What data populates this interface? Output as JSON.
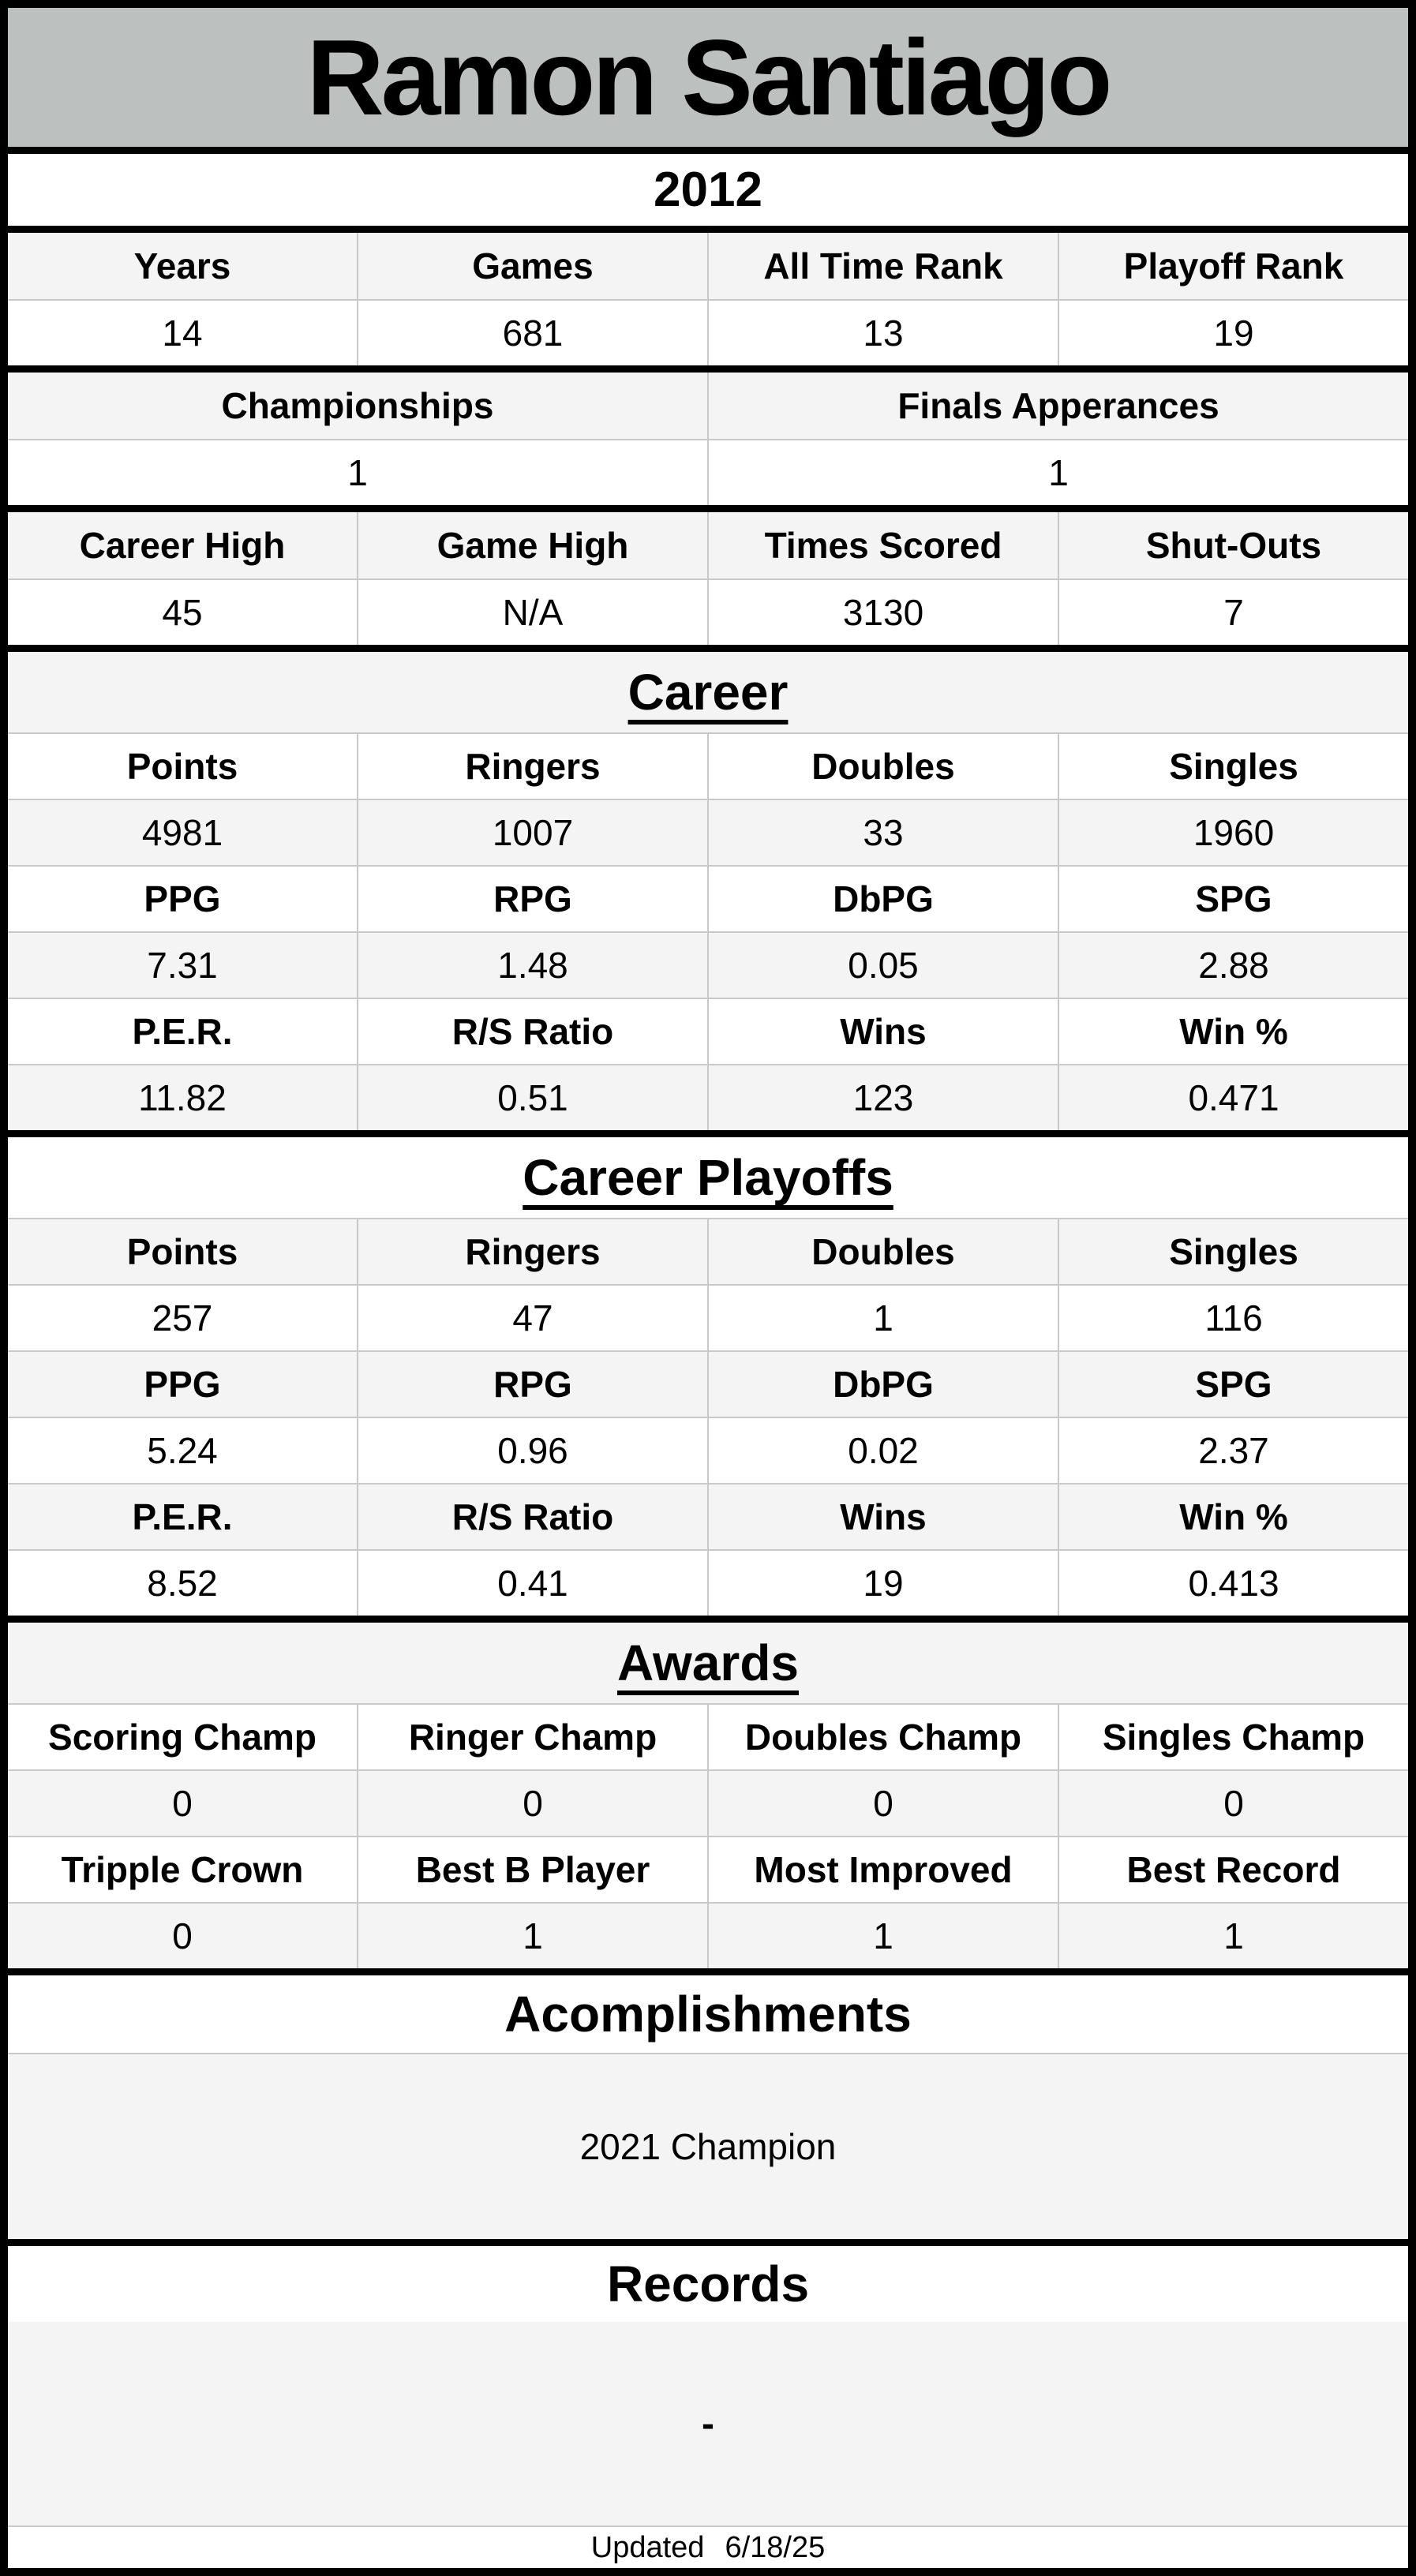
{
  "title": "Ramon Santiago",
  "season": "2012",
  "overview": {
    "headers": [
      "Years",
      "Games",
      "All Time Rank",
      "Playoff Rank"
    ],
    "values": [
      "14",
      "681",
      "13",
      "19"
    ]
  },
  "finals": {
    "headers": [
      "Championships",
      "Finals Apperances"
    ],
    "values": [
      "1",
      "1"
    ]
  },
  "highs": {
    "headers": [
      "Career High",
      "Game High",
      "Times Scored",
      "Shut-Outs"
    ],
    "values": [
      "45",
      "N/A",
      "3130",
      "7"
    ]
  },
  "career": {
    "title": "Career",
    "rows": [
      {
        "headers": [
          "Points",
          "Ringers",
          "Doubles",
          "Singles"
        ],
        "values": [
          "4981",
          "1007",
          "33",
          "1960"
        ]
      },
      {
        "headers": [
          "PPG",
          "RPG",
          "DbPG",
          "SPG"
        ],
        "values": [
          "7.31",
          "1.48",
          "0.05",
          "2.88"
        ]
      },
      {
        "headers": [
          "P.E.R.",
          "R/S Ratio",
          "Wins",
          "Win %"
        ],
        "values": [
          "11.82",
          "0.51",
          "123",
          "0.471"
        ]
      }
    ]
  },
  "career_playoffs": {
    "title": "Career Playoffs",
    "rows": [
      {
        "headers": [
          "Points",
          "Ringers",
          "Doubles",
          "Singles"
        ],
        "values": [
          "257",
          "47",
          "1",
          "116"
        ]
      },
      {
        "headers": [
          "PPG",
          "RPG",
          "DbPG",
          "SPG"
        ],
        "values": [
          "5.24",
          "0.96",
          "0.02",
          "2.37"
        ]
      },
      {
        "headers": [
          "P.E.R.",
          "R/S Ratio",
          "Wins",
          "Win %"
        ],
        "values": [
          "8.52",
          "0.41",
          "19",
          "0.413"
        ]
      }
    ]
  },
  "awards": {
    "title": "Awards",
    "rows": [
      {
        "headers": [
          "Scoring Champ",
          "Ringer Champ",
          "Doubles Champ",
          "Singles Champ"
        ],
        "values": [
          "0",
          "0",
          "0",
          "0"
        ]
      },
      {
        "headers": [
          "Tripple Crown",
          "Best B Player",
          "Most Improved",
          "Best Record"
        ],
        "values": [
          "0",
          "1",
          "1",
          "1"
        ]
      }
    ]
  },
  "acomplishments": {
    "title": "Acomplishments",
    "content": "2021 Champion"
  },
  "records": {
    "title": "Records",
    "content": "-"
  },
  "footer": {
    "label": "Updated",
    "date": "6/18/25"
  },
  "colors": {
    "title_bg": "#bcc0bf",
    "alt_row_bg": "#f4f4f4",
    "section_border": "#000000",
    "cell_divider": "#c9c9c9"
  }
}
